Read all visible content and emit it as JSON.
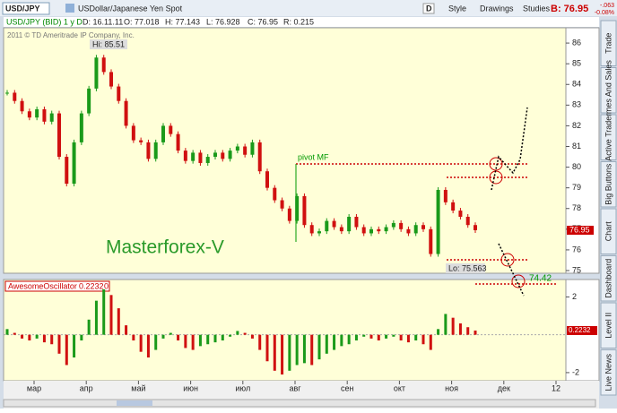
{
  "toolbar": {
    "symbol": "USD/JPY",
    "description": "USDollar/Japanese Yen Spot",
    "period": "D",
    "buttons": [
      "Style",
      "Drawings",
      "Studies"
    ],
    "bid": "B: 76.95",
    "change": "-.063",
    "change_pct": "-0.08%"
  },
  "info": {
    "instrument": "USD/JPY (BID) 1 y D",
    "date": "D: 16.11.11",
    "open": "O: 77.018",
    "high": "H: 77.143",
    "low": "L: 76.928",
    "close": "C: 76.95",
    "range": "R: 0.215"
  },
  "chart": {
    "copyright": "2011 © TD Ameritrade IP Company, Inc.",
    "hi_label": "Hi: 85.51",
    "lo_label": "Lo: 75.563",
    "pivot_label": "pivot MF",
    "target_label": "74.42",
    "watermark": "Masterforex-V",
    "price_tag": "76.95",
    "ylim": [
      74.87,
      86.74
    ],
    "yticks": [
      75,
      76,
      77,
      78,
      79,
      80,
      81,
      82,
      83,
      84,
      85,
      86
    ],
    "closes": [
      83.6,
      83.2,
      82.7,
      82.4,
      82.8,
      82.2,
      82.6,
      80.5,
      79.2,
      81.2,
      82.6,
      83.8,
      85.3,
      84.6,
      83.9,
      83.2,
      82.0,
      81.3,
      81.2,
      80.4,
      81.2,
      82.0,
      81.6,
      80.8,
      80.3,
      80.7,
      80.2,
      80.5,
      80.7,
      80.4,
      80.8,
      81.0,
      80.6,
      81.2,
      79.8,
      79.0,
      78.4,
      78.0,
      77.4,
      78.6,
      77.2,
      76.8,
      76.9,
      77.4,
      77.1,
      76.9,
      77.6,
      77.1,
      76.8,
      77.0,
      76.9,
      77.1,
      77.3,
      77.0,
      76.8,
      77.2,
      77.0,
      75.8,
      78.9,
      78.3,
      77.9,
      77.6,
      77.2,
      76.95
    ]
  },
  "oscillator": {
    "name": "AwesomeOscillator",
    "value_label": "0.2232",
    "param": "0",
    "price_tag": "0.2232",
    "ylim": [
      -2.43,
      2.92
    ],
    "yticks": [
      2,
      -2
    ],
    "values": [
      0.3,
      0.1,
      -0.2,
      -0.3,
      -0.2,
      -0.4,
      -0.5,
      -1.0,
      -1.6,
      -1.2,
      -0.3,
      0.8,
      1.8,
      2.4,
      2.1,
      1.4,
      0.5,
      -0.3,
      -0.9,
      -1.2,
      -0.8,
      -0.2,
      0.1,
      -0.3,
      -0.7,
      -0.8,
      -0.6,
      -0.5,
      -0.4,
      -0.3,
      -0.1,
      0.2,
      0.1,
      -0.2,
      -0.8,
      -1.4,
      -1.9,
      -2.1,
      -1.9,
      -1.6,
      -1.5,
      -1.6,
      -1.3,
      -1.0,
      -0.8,
      -0.6,
      -0.5,
      -0.3,
      -0.1,
      -0.2,
      -0.3,
      -0.2,
      -0.1,
      -0.3,
      -0.4,
      -0.3,
      -0.5,
      -0.8,
      0.3,
      1.1,
      0.9,
      0.6,
      0.4,
      0.2232
    ]
  },
  "x_axis": [
    "мар",
    "апр",
    "май",
    "июн",
    "июл",
    "авг",
    "сен",
    "окт",
    "ноя",
    "дек",
    "12"
  ],
  "side_tabs": [
    "Trade",
    "Times And Sales",
    "Active Trader",
    "Big Buttons",
    "Chart",
    "Dashboard",
    "Level II",
    "Live News"
  ]
}
